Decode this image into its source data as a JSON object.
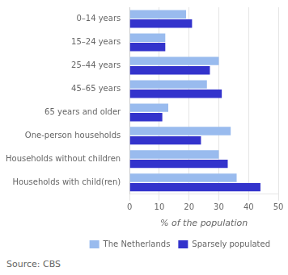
{
  "chart_data": {
    "type": "bar",
    "orientation": "horizontal",
    "categories": [
      "0–14 years",
      "15–24 years",
      "25–44 years",
      "45–65 years",
      "65 years and older",
      "One-person households",
      "Households without children",
      "Households with child(ren)"
    ],
    "series": [
      {
        "name": "The Netherlands",
        "color": "#99bbee",
        "values": [
          19,
          12,
          30,
          26,
          13,
          34,
          30,
          36
        ]
      },
      {
        "name": "Sparsely populated",
        "color": "#3333cc",
        "values": [
          21,
          12,
          27,
          31,
          11,
          24,
          33,
          44
        ]
      }
    ],
    "xlabel": "% of the population",
    "xlim": [
      0,
      50
    ],
    "xticks": [
      0,
      10,
      20,
      30,
      40,
      50
    ],
    "grid": true,
    "legend": "lower right",
    "annotation": "Source: CBS"
  }
}
